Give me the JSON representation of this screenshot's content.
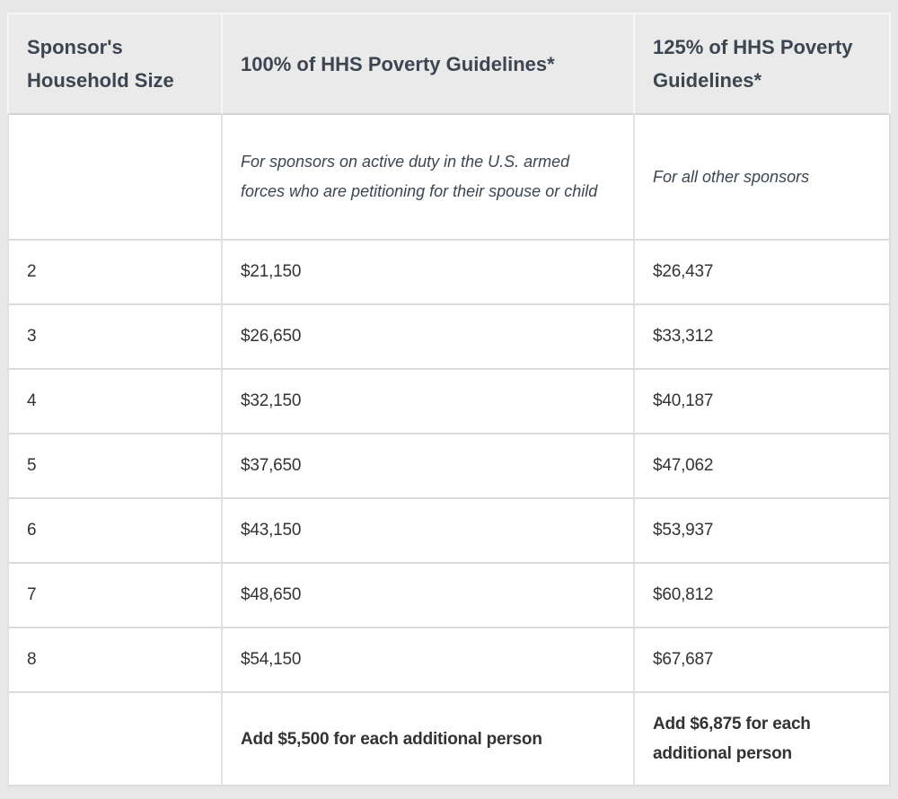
{
  "page": {
    "background_color": "#e7e7e7",
    "header_bg_color": "#eaeaea",
    "header_text_color": "#3d4551",
    "body_text_color": "#333333",
    "border_color": "#dcdcdc"
  },
  "table": {
    "header": {
      "household_size": "Sponsor's Household Size",
      "guidelines_100": "100% of HHS Poverty Guidelines*",
      "guidelines_125": "125% of HHS Poverty Guidelines*"
    },
    "notes": {
      "guidelines_100_note": "For sponsors on active duty in the U.S. armed forces who are petitioning for their spouse or child",
      "guidelines_125_note": "For all other sponsors"
    },
    "rows": [
      {
        "household_size": "2",
        "guideline_100": "$21,150",
        "guideline_125": "$26,437"
      },
      {
        "household_size": "3",
        "guideline_100": "$26,650",
        "guideline_125": "$33,312"
      },
      {
        "household_size": "4",
        "guideline_100": "$32,150",
        "guideline_125": "$40,187"
      },
      {
        "household_size": "5",
        "guideline_100": "$37,650",
        "guideline_125": "$47,062"
      },
      {
        "household_size": "6",
        "guideline_100": "$43,150",
        "guideline_125": "$53,937"
      },
      {
        "household_size": "7",
        "guideline_100": "$48,650",
        "guideline_125": "$60,812"
      },
      {
        "household_size": "8",
        "guideline_100": "$54,150",
        "guideline_125": "$67,687"
      }
    ],
    "footer": {
      "additional_person_100": "Add $5,500 for each additional person",
      "additional_person_125": "Add $6,875 for each additional person"
    }
  }
}
